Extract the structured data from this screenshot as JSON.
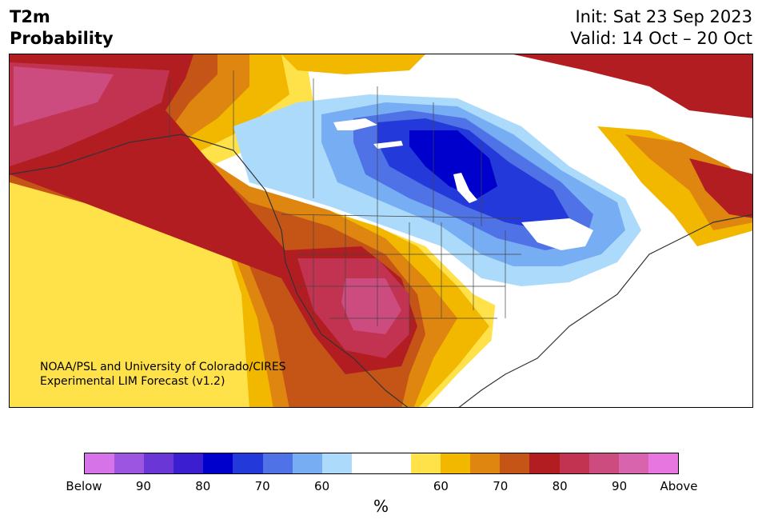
{
  "header": {
    "title_line1": "T2m",
    "title_line2": "Probability",
    "init_line": "Init: Sat 23 Sep 2023",
    "valid_line": "Valid: 14 Oct – 20 Oct"
  },
  "map": {
    "region": "North America",
    "credit_line1": "NOAA/PSL and University of Colorado/CIRES",
    "credit_line2": "Experimental LIM Forecast (v1.2)"
  },
  "colorbar": {
    "unit_label": "%",
    "tick_labels": [
      "Below",
      "90",
      "80",
      "70",
      "60",
      "60",
      "70",
      "80",
      "90",
      "Above"
    ],
    "colors": [
      "#d673e8",
      "#9b55e0",
      "#6a36d6",
      "#3b1ed0",
      "#0000cc",
      "#2439d9",
      "#4f73e6",
      "#77adf2",
      "#acdafb",
      "#ffffff",
      "#ffffff",
      "#ffe14a",
      "#f2b800",
      "#de860f",
      "#c45517",
      "#b21d22",
      "#c13350",
      "#cc4c80",
      "#d964ae",
      "#e876e0"
    ]
  }
}
